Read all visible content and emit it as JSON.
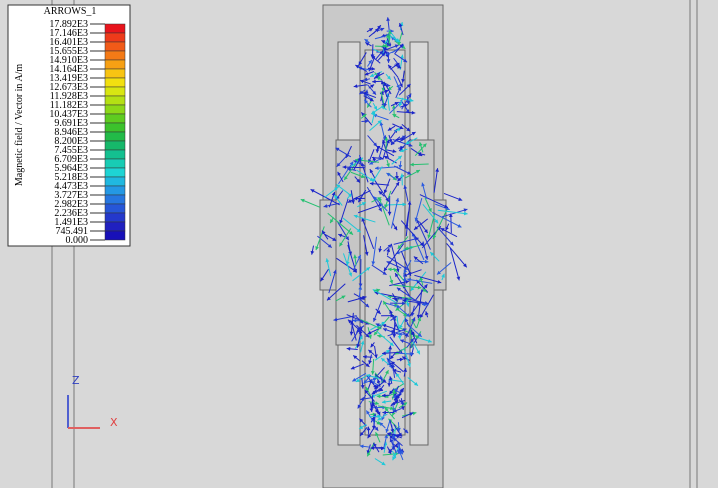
{
  "legend": {
    "title": "ARROWS_1",
    "axis_label": "Magnetic field / Vector in A/m",
    "labels": [
      "17.892E3",
      "17.146E3",
      "16.401E3",
      "15.655E3",
      "14.910E3",
      "14.164E3",
      "13.419E3",
      "12.673E3",
      "11.928E3",
      "11.182E3",
      "10.437E3",
      "9.691E3",
      "8.946E3",
      "8.200E3",
      "7.455E3",
      "6.709E3",
      "5.964E3",
      "5.218E3",
      "4.473E3",
      "3.727E3",
      "2.982E3",
      "2.236E3",
      "1.491E3",
      "745.491",
      "0.000"
    ],
    "colors": [
      "#e8141c",
      "#ee3a1a",
      "#f15a18",
      "#f47a16",
      "#f6a014",
      "#f8c412",
      "#f2e010",
      "#d8e612",
      "#b4e014",
      "#8cd818",
      "#5ecc20",
      "#3cc22c",
      "#22bb48",
      "#16b86a",
      "#14c090",
      "#18ccb4",
      "#1ed4d4",
      "#20b8e0",
      "#2498e4",
      "#2676e0",
      "#2656d8",
      "#2438cc",
      "#2020c0",
      "#1810b8"
    ]
  },
  "triad": {
    "z": "Z",
    "x": "X"
  }
}
